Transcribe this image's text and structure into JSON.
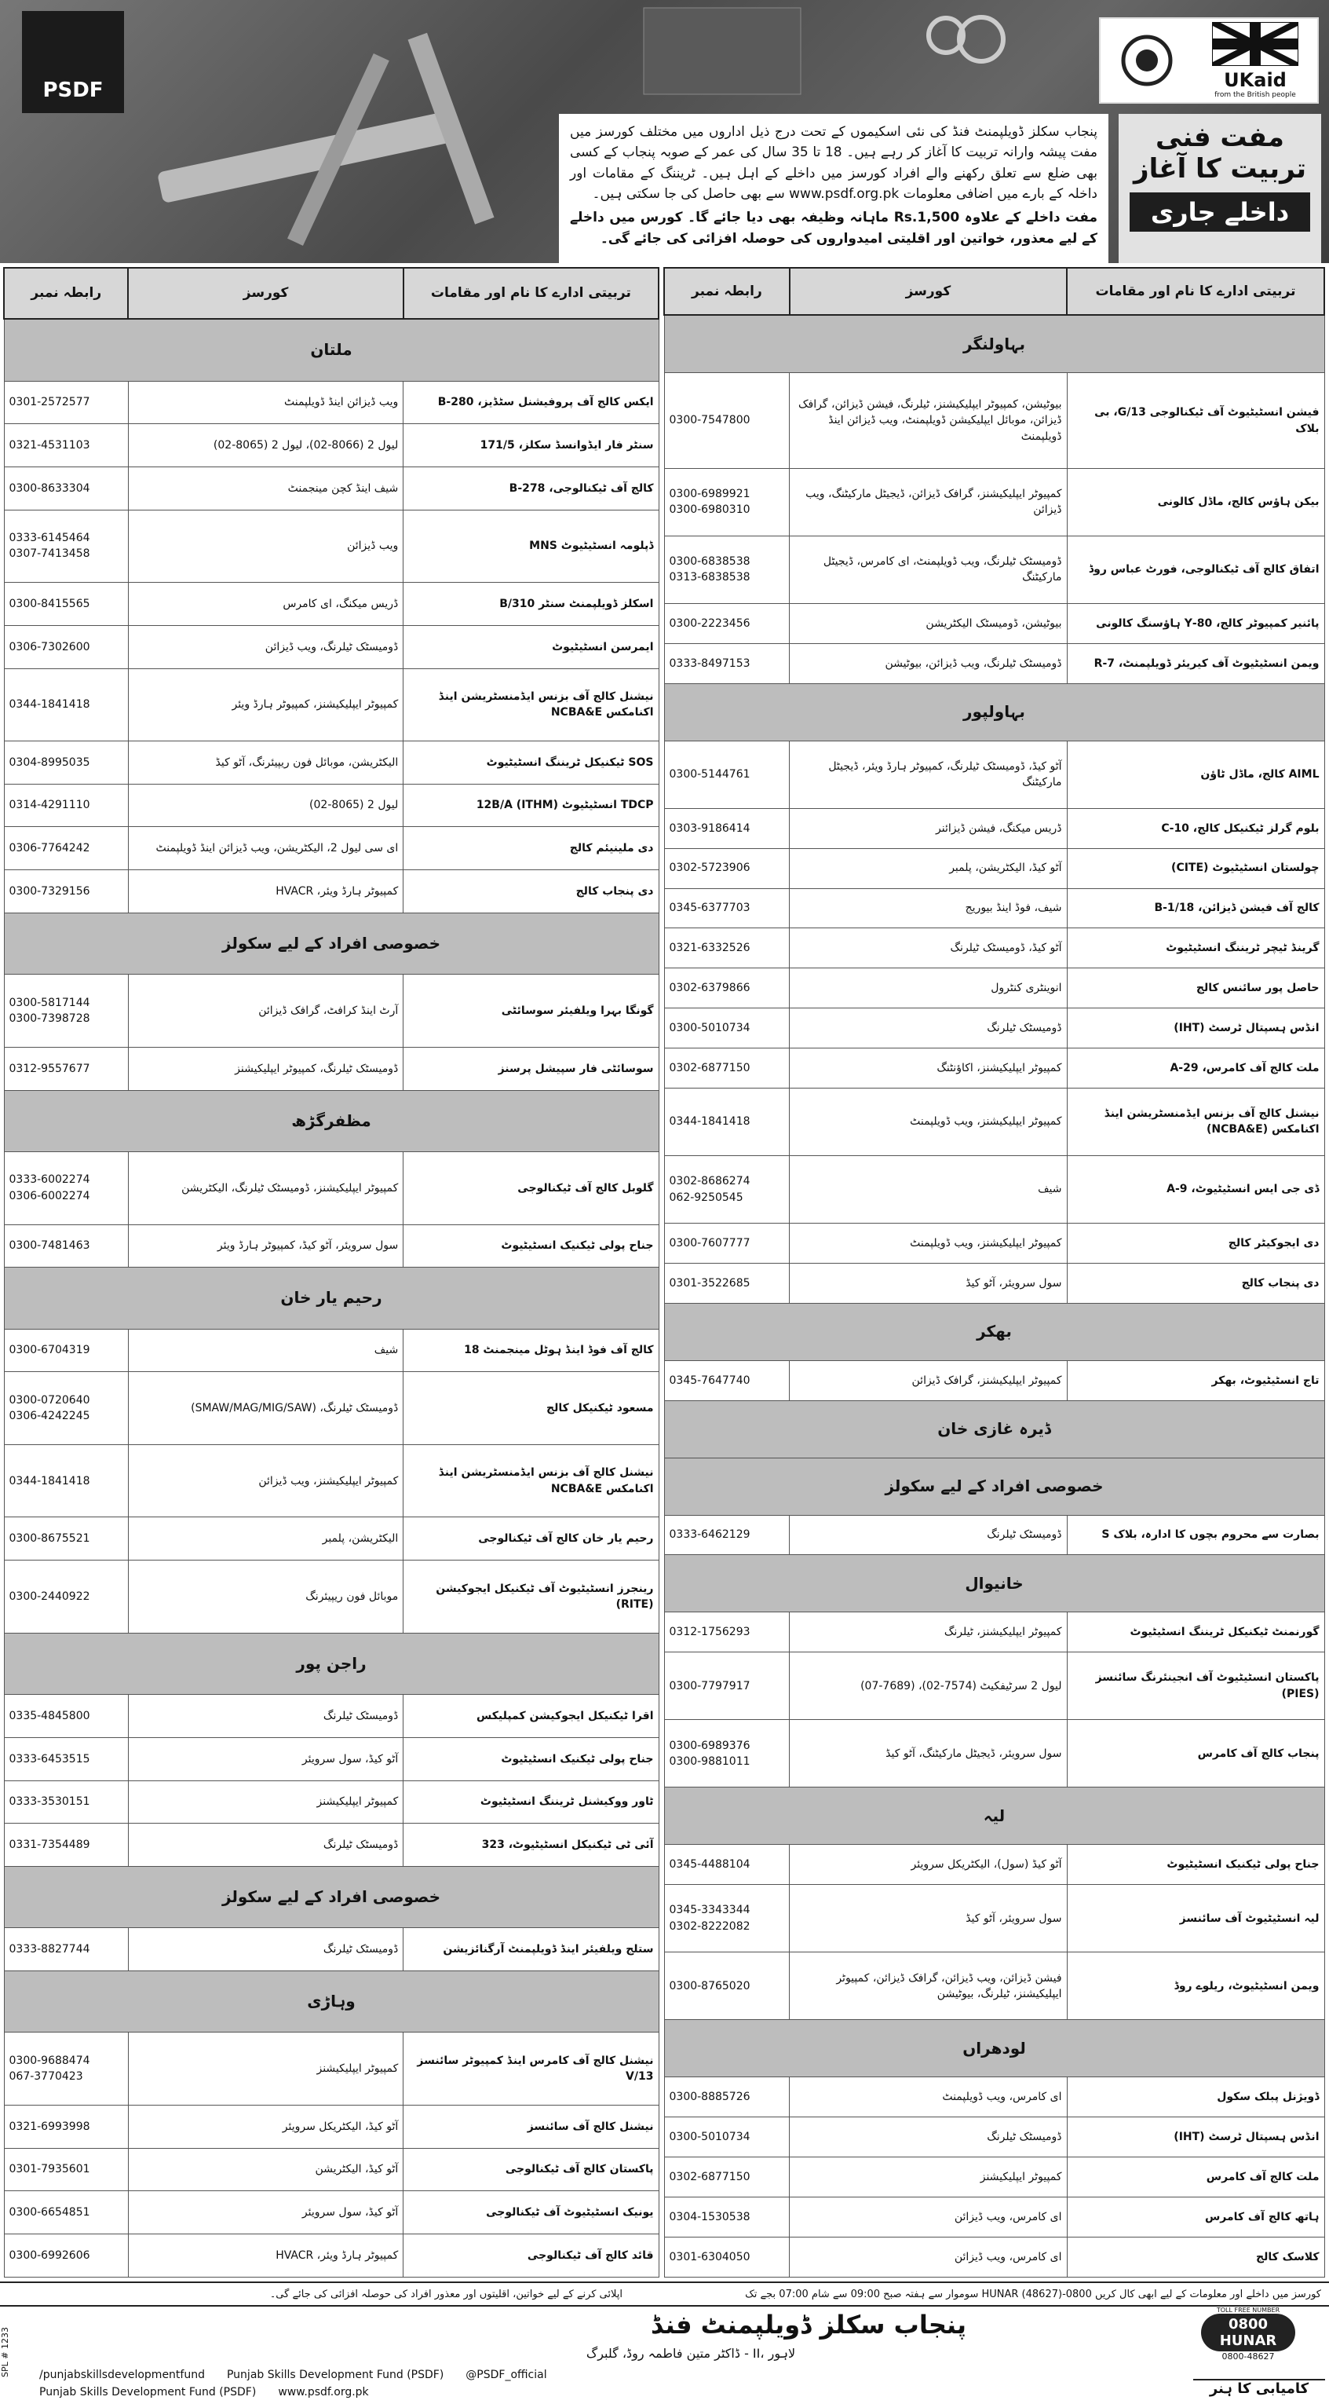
{
  "header": {
    "logo_left": "PSDF",
    "logo_right": {
      "brand": "UKaid",
      "tagline": "from the British people"
    },
    "title_line1": "مفت فنی",
    "title_line2": "تربیت کا آغاز",
    "admission": "داخلے جاری",
    "intro": "پنجاب سکلز ڈویلپمنٹ فنڈ کی نئی اسکیموں کے تحت درج ذیل اداروں میں مختلف کورسز میں مفت پیشہ وارانہ تربیت کا آغاز کر رہے ہیں۔ 18 تا 35 سال کی عمر کے صوبہ پنجاب کے کسی بھی ضلع سے تعلق رکھنے والے افراد کورسز میں داخلے کے اہل ہیں۔ ٹریننگ کے مقامات اور داخلہ کے بارے میں اضافی معلومات www.psdf.org.pk سے بھی حاصل کی جا سکتی ہیں۔",
    "stipend": "مفت داخلے کے علاوہ Rs.1,500 ماہانہ وظیفہ بھی دیا جائے گا۔ کورس میں داخلے کے لیے معذور، خواتین اور اقلیتی امیدواروں کی حوصلہ افزائی کی جائے گی۔"
  },
  "right_table": {
    "columns": [
      "تربیتی ادارے کا نام اور مقامات",
      "کورسز",
      "رابطہ نمبر"
    ],
    "sections": [
      {
        "title": "بہاولنگر",
        "rows": [
          {
            "institute": "فیشن انسٹیٹیوٹ آف ٹیکنالوجی 13/G، بی بلاک",
            "courses": "بیوٹیشن، کمپیوٹر ایپلیکیشنز، ٹیلرنگ، فیشن ڈیزائن، گرافک ڈیزائن، موبائل ایپلیکیشن ڈویلپمنٹ، ویب ڈیزائن اینڈ ڈویلپمنٹ",
            "phones": [
              "0300-7547800"
            ]
          },
          {
            "institute": "بیکن ہاؤس کالج، ماڈل کالونی",
            "courses": "کمپیوٹر ایپلیکیشنز، گرافک ڈیزائن، ڈیجیٹل مارکیٹنگ، ویب ڈیزائن",
            "phones": [
              "0300-6989921",
              "0300-6980310"
            ]
          },
          {
            "institute": "اتفاق کالج آف ٹیکنالوجی، فورٹ عباس روڈ",
            "courses": "ڈومیسٹک ٹیلرنگ، ویب ڈویلپمنٹ، ای کامرس، ڈیجیٹل مارکیٹنگ",
            "phones": [
              "0300-6838538",
              "0313-6838538"
            ]
          },
          {
            "institute": "پائنیر کمپیوٹر کالج، 80-Y ہاؤسنگ کالونی",
            "courses": "بیوٹیشن، ڈومیسٹک الیکٹریشن",
            "phones": [
              "0300-2223456"
            ]
          },
          {
            "institute": "ویمن انسٹیٹیوٹ آف کیریئر ڈویلپمنٹ، 7-R",
            "courses": "ڈومیسٹک ٹیلرنگ، ویب ڈیزائن، بیوٹیشن",
            "phones": [
              "0333-8497153"
            ]
          }
        ]
      },
      {
        "title": "بہاولپور",
        "rows": [
          {
            "institute": "AIML کالج، ماڈل ٹاؤن",
            "courses": "آٹو کیڈ، ڈومیسٹک ٹیلرنگ، کمپیوٹر ہارڈ ویئر، ڈیجیٹل مارکیٹنگ",
            "phones": [
              "0300-5144761"
            ]
          },
          {
            "institute": "بلوم گرلز ٹیکنیکل کالج، 10-C",
            "courses": "ڈریس میکنگ، فیشن ڈیزائنر",
            "phones": [
              "0303-9186414"
            ]
          },
          {
            "institute": "چولستان انسٹیٹیوٹ (CITE)",
            "courses": "آٹو کیڈ، الیکٹریشن، پلمبر",
            "phones": [
              "0302-5723906"
            ]
          },
          {
            "institute": "کالج آف فیشن ڈیزائن، 18/B-1",
            "courses": "شیف، فوڈ اینڈ بیوریج",
            "phones": [
              "0345-6377703"
            ]
          },
          {
            "institute": "گرینڈ ٹیچر ٹریننگ انسٹیٹیوٹ",
            "courses": "آٹو کیڈ، ڈومیسٹک ٹیلرنگ",
            "phones": [
              "0321-6332526"
            ]
          },
          {
            "institute": "حاصل پور سائنس کالج",
            "courses": "انوینٹری کنٹرول",
            "phones": [
              "0302-6379866"
            ]
          },
          {
            "institute": "انڈس ہسپتال ٹرسٹ (IHT)",
            "courses": "ڈومیسٹک ٹیلرنگ",
            "phones": [
              "0300-5010734"
            ]
          },
          {
            "institute": "ملت کالج آف کامرس، 29-A",
            "courses": "کمپیوٹر ایپلیکیشنز، اکاؤنٹنگ",
            "phones": [
              "0302-6877150"
            ]
          },
          {
            "institute": "نیشنل کالج آف بزنس ایڈمنسٹریشن اینڈ اکنامکس (NCBA&E)",
            "courses": "کمپیوٹر ایپلیکیشنز، ویب ڈویلپمنٹ",
            "phones": [
              "0344-1841418"
            ]
          },
          {
            "institute": "ڈی جی ایس انسٹیٹیوٹ، 9-A",
            "courses": "شیف",
            "phones": [
              "0302-8686274",
              "062-9250545"
            ]
          },
          {
            "institute": "دی ایجوکیٹر کالج",
            "courses": "کمپیوٹر ایپلیکیشنز، ویب ڈویلپمنٹ",
            "phones": [
              "0300-7607777"
            ]
          },
          {
            "institute": "دی پنجاب کالج",
            "courses": "سول سرویئر، آٹو کیڈ",
            "phones": [
              "0301-3522685"
            ]
          }
        ]
      },
      {
        "title": "بھکر",
        "rows": [
          {
            "institute": "تاج انسٹیٹیوٹ، بھکر",
            "courses": "کمپیوٹر ایپلیکیشنز، گرافک ڈیزائن",
            "phones": [
              "0345-7647740"
            ]
          }
        ]
      },
      {
        "title": "ڈیرہ غازی خان",
        "rows": []
      },
      {
        "title": "خصوصی افراد کے لیے سکولز",
        "rows": [
          {
            "institute": "بصارت سے محروم بچوں کا ادارہ، بلاک S",
            "courses": "ڈومیسٹک ٹیلرنگ",
            "phones": [
              "0333-6462129"
            ]
          }
        ]
      },
      {
        "title": "خانیوال",
        "rows": [
          {
            "institute": "گورنمنٹ ٹیکنیکل ٹریننگ انسٹیٹیوٹ",
            "courses": "کمپیوٹر ایپلیکیشنز، ٹیلرنگ",
            "phones": [
              "0312-1756293"
            ]
          },
          {
            "institute": "پاکستان انسٹیٹیوٹ آف انجینئرنگ سائنسز (PIES)",
            "courses": "لیول 2 سرٹیفکیٹ (7574-02)، (7689-07)",
            "phones": [
              "0300-7797917"
            ]
          },
          {
            "institute": "پنجاب کالج آف کامرس",
            "courses": "سول سرویئر، ڈیجیٹل مارکیٹنگ، آٹو کیڈ",
            "phones": [
              "0300-6989376",
              "0300-9881011"
            ]
          }
        ]
      },
      {
        "title": "لیہ",
        "rows": [
          {
            "institute": "جناح پولی ٹیکنیک انسٹیٹیوٹ",
            "courses": "آٹو کیڈ (سول)، الیکٹریکل سرویئر",
            "phones": [
              "0345-4488104"
            ]
          },
          {
            "institute": "لیہ انسٹیٹیوٹ آف سائنسز",
            "courses": "سول سرویئر، آٹو کیڈ",
            "phones": [
              "0345-3343344",
              "0302-8222082"
            ]
          },
          {
            "institute": "ویمن انسٹیٹیوٹ، ریلوے روڈ",
            "courses": "فیشن ڈیزائن، ویب ڈیزائن، گرافک ڈیزائن، کمپیوٹر ایپلیکیشنز، ٹیلرنگ، بیوٹیشن",
            "phones": [
              "0300-8765020"
            ]
          }
        ]
      },
      {
        "title": "لودھراں",
        "rows": [
          {
            "institute": "ڈویژنل پبلک سکول",
            "courses": "ای کامرس، ویب ڈویلپمنٹ",
            "phones": [
              "0300-8885726"
            ]
          },
          {
            "institute": "انڈس ہسپتال ٹرسٹ (IHT)",
            "courses": "ڈومیسٹک ٹیلرنگ",
            "phones": [
              "0300-5010734"
            ]
          },
          {
            "institute": "ملت کالج آف کامرس",
            "courses": "کمپیوٹر ایپلیکیشنز",
            "phones": [
              "0302-6877150"
            ]
          },
          {
            "institute": "ہاتھ کالج آف کامرس",
            "courses": "ای کامرس، ویب ڈیزائن",
            "phones": [
              "0304-1530538"
            ]
          },
          {
            "institute": "کلاسک کالج",
            "courses": "ای کامرس، ویب ڈیزائن",
            "phones": [
              "0301-6304050"
            ]
          }
        ]
      }
    ]
  },
  "left_table": {
    "columns": [
      "تربیتی ادارے کا نام اور مقامات",
      "کورسز",
      "رابطہ نمبر"
    ],
    "sections": [
      {
        "title": "ملتان",
        "rows": [
          {
            "institute": "ایکس کالج آف پروفیشنل سٹڈیز، 280-B",
            "courses": "ویب ڈیزائن اینڈ ڈویلپمنٹ",
            "phones": [
              "0301-2572577"
            ]
          },
          {
            "institute": "سنٹر فار ایڈوانسڈ سکلز، 171/5",
            "courses": "لیول 2 (8066-02)، لیول 2 (8065-02)",
            "phones": [
              "0321-4531103"
            ]
          },
          {
            "institute": "کالج آف ٹیکنالوجی، 278-B",
            "courses": "شیف اینڈ کچن مینجمنٹ",
            "phones": [
              "0300-8633304"
            ]
          },
          {
            "institute": "ڈپلومہ انسٹیٹیوٹ MNS",
            "courses": "ویب ڈیزائن",
            "phones": [
              "0333-6145464",
              "0307-7413458"
            ]
          },
          {
            "institute": "اسکلز ڈویلپمنٹ سنٹر 310/B",
            "courses": "ڈریس میکنگ، ای کامرس",
            "phones": [
              "0300-8415565"
            ]
          },
          {
            "institute": "ایمرسن انسٹیٹیوٹ",
            "courses": "ڈومیسٹک ٹیلرنگ، ویب ڈیزائن",
            "phones": [
              "0306-7302600"
            ]
          },
          {
            "institute": "نیشنل کالج آف بزنس ایڈمنسٹریشن اینڈ اکنامکس NCBA&E",
            "courses": "کمپیوٹر ایپلیکیشنز، کمپیوٹر ہارڈ ویئر",
            "phones": [
              "0344-1841418"
            ]
          },
          {
            "institute": "SOS ٹیکنیکل ٹریننگ انسٹیٹیوٹ",
            "courses": "الیکٹریشن، موبائل فون ریپیئرنگ، آٹو کیڈ",
            "phones": [
              "0304-8995035"
            ]
          },
          {
            "institute": "TDCP انسٹیٹیوٹ (ITHM) 12B/A",
            "courses": "لیول 2 (8065-02)",
            "phones": [
              "0314-4291110"
            ]
          },
          {
            "institute": "دی ملینیئم کالج",
            "courses": "ای سی لیول 2، الیکٹریشن، ویب ڈیزائن اینڈ ڈویلپمنٹ",
            "phones": [
              "0306-7764242"
            ]
          },
          {
            "institute": "دی پنجاب کالج",
            "courses": "کمپیوٹر ہارڈ ویئر، HVACR",
            "phones": [
              "0300-7329156"
            ]
          }
        ]
      },
      {
        "title": "خصوصی افراد کے لیے سکولز",
        "rows": [
          {
            "institute": "گونگا بہرا ویلفیئر سوسائٹی",
            "courses": "آرٹ اینڈ کرافٹ، گرافک ڈیزائن",
            "phones": [
              "0300-5817144",
              "0300-7398728"
            ]
          },
          {
            "institute": "سوسائٹی فار سپیشل پرسنز",
            "courses": "ڈومیسٹک ٹیلرنگ، کمپیوٹر ایپلیکیشنز",
            "phones": [
              "0312-9557677"
            ]
          }
        ]
      },
      {
        "title": "مظفرگڑھ",
        "rows": [
          {
            "institute": "گلوبل کالج آف ٹیکنالوجی",
            "courses": "کمپیوٹر ایپلیکیشنز، ڈومیسٹک ٹیلرنگ، الیکٹریشن",
            "phones": [
              "0333-6002274",
              "0306-6002274"
            ]
          },
          {
            "institute": "جناح پولی ٹیکنیک انسٹیٹیوٹ",
            "courses": "سول سرویئر، آٹو کیڈ، کمپیوٹر ہارڈ ویئر",
            "phones": [
              "0300-7481463"
            ]
          }
        ]
      },
      {
        "title": "رحیم یار خان",
        "rows": [
          {
            "institute": "کالج آف فوڈ اینڈ ہوٹل مینجمنٹ 18",
            "courses": "شیف",
            "phones": [
              "0300-6704319"
            ]
          },
          {
            "institute": "مسعود ٹیکنیکل کالج",
            "courses": "ڈومیسٹک ٹیلرنگ، (SMAW/MAG/MIG/SAW)",
            "phones": [
              "0300-0720640",
              "0306-4242245"
            ]
          },
          {
            "institute": "نیشنل کالج آف بزنس ایڈمنسٹریشن اینڈ اکنامکس NCBA&E",
            "courses": "کمپیوٹر ایپلیکیشنز، ویب ڈیزائن",
            "phones": [
              "0344-1841418"
            ]
          },
          {
            "institute": "رحیم یار خان کالج آف ٹیکنالوجی",
            "courses": "الیکٹریشن، پلمبر",
            "phones": [
              "0300-8675521"
            ]
          },
          {
            "institute": "رینجرز انسٹیٹیوٹ آف ٹیکنیکل ایجوکیشن (RITE)",
            "courses": "موبائل فون ریپیئرنگ",
            "phones": [
              "0300-2440922"
            ]
          }
        ]
      },
      {
        "title": "راجن پور",
        "rows": [
          {
            "institute": "اقرا ٹیکنیکل ایجوکیشن کمپلیکس",
            "courses": "ڈومیسٹک ٹیلرنگ",
            "phones": [
              "0335-4845800"
            ]
          },
          {
            "institute": "جناح پولی ٹیکنیک انسٹیٹیوٹ",
            "courses": "آٹو کیڈ، سول سرویئر",
            "phones": [
              "0333-6453515"
            ]
          },
          {
            "institute": "ٹاور ووکیشنل ٹریننگ انسٹیٹیوٹ",
            "courses": "کمپیوٹر ایپلیکیشنز",
            "phones": [
              "0333-3530151"
            ]
          },
          {
            "institute": "آئی ٹی ٹیکنیکل انسٹیٹیوٹ، 323",
            "courses": "ڈومیسٹک ٹیلرنگ",
            "phones": [
              "0331-7354489"
            ]
          }
        ]
      },
      {
        "title": "خصوصی افراد کے لیے سکولز",
        "rows": [
          {
            "institute": "ستلج ویلفیئر اینڈ ڈویلپمنٹ آرگنائزیشن",
            "courses": "ڈومیسٹک ٹیلرنگ",
            "phones": [
              "0333-8827744"
            ]
          }
        ]
      },
      {
        "title": "وہاڑی",
        "rows": [
          {
            "institute": "نیشنل کالج آف کامرس اینڈ کمپیوٹر سائنسز 13/V",
            "courses": "کمپیوٹر ایپلیکیشنز",
            "phones": [
              "0300-9688474",
              "067-3770423"
            ]
          },
          {
            "institute": "نیشنل کالج آف سائنسز",
            "courses": "آٹو کیڈ، الیکٹریکل سرویئر",
            "phones": [
              "0321-6993998"
            ]
          },
          {
            "institute": "پاکستان کالج آف ٹیکنالوجی",
            "courses": "آٹو کیڈ، الیکٹریشن",
            "phones": [
              "0301-7935601"
            ]
          },
          {
            "institute": "یونیک انسٹیٹیوٹ آف ٹیکنالوجی",
            "courses": "آٹو کیڈ، سول سرویئر",
            "phones": [
              "0300-6654851"
            ]
          },
          {
            "institute": "قائد کالج آف ٹیکنالوجی",
            "courses": "کمپیوٹر ہارڈ ویئر، HVACR",
            "phones": [
              "0300-6992606"
            ]
          }
        ]
      }
    ]
  },
  "notes": {
    "right": "کورسز میں داخلے اور معلومات کے لیے ابھی کال کریں 0800-HUNAR (48627) سوموار سے ہفتہ صبح 09:00 سے شام 07:00 بجے تک",
    "left": "اپلائی کرنے کے لیے خواتین، اقلیتوں اور معذور افراد کی حوصلہ افزائی کی جائے گی۔"
  },
  "footer": {
    "org": "پنجاب سکلز ڈویلپمنٹ فنڈ",
    "address": "ڈاکٹر متین فاطمہ روڈ، گلبرگ - II، لاہور",
    "ref": "SPL # 1233",
    "social": [
      "/punjabskillsdevelopmentfund",
      "Punjab Skills Development Fund (PSDF)",
      "@PSDF_official",
      "Punjab Skills Development Fund (PSDF)",
      "www.psdf.org.pk"
    ],
    "hotline_caption": "TOLL FREE NUMBER",
    "hotline_a": "0800",
    "hotline_b": "HUNAR",
    "hotline_number": "0800-48627",
    "slogan": "کامیابی کا ہنر"
  }
}
